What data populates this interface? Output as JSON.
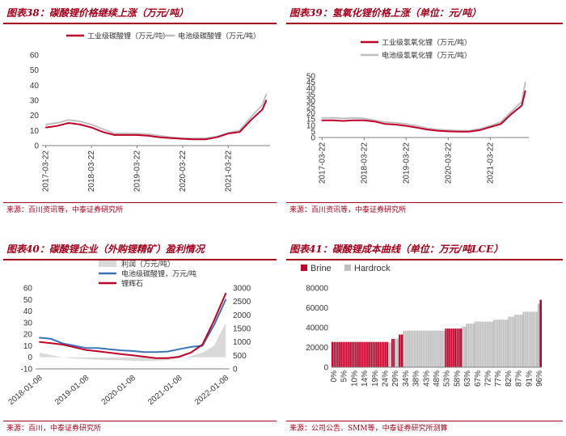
{
  "charts": [
    {
      "title": "图表38：碳酸锂价格继续上涨（万元/吨）",
      "source": "来源：百川资讯等，中泰证券研究所",
      "chart_data": {
        "type": "line",
        "y_ticks": [
          "0",
          "10",
          "20",
          "30",
          "40",
          "50",
          "60"
        ],
        "x_ticks": [
          "2017-03-22",
          "2018-03-22",
          "2019-03-22",
          "2020-03-22",
          "2021-03-22"
        ],
        "ylim": [
          0,
          60
        ],
        "legend_position": "top",
        "series": [
          {
            "name": "工业级碳酸锂（万元/吨）",
            "color": "#c00029",
            "x": [
              "2017-03",
              "2017-06",
              "2017-09",
              "2017-12",
              "2018-03",
              "2018-06",
              "2018-09",
              "2018-12",
              "2019-03",
              "2019-06",
              "2019-09",
              "2019-12",
              "2020-03",
              "2020-06",
              "2020-09",
              "2020-12",
              "2021-03",
              "2021-06",
              "2021-09",
              "2021-12",
              "2022-01"
            ],
            "values": [
              12,
              13,
              15,
              14,
              12,
              9,
              7,
              7,
              7,
              6.5,
              5.5,
              5,
              4.5,
              4.2,
              4.2,
              5.5,
              8,
              9,
              17,
              24,
              30
            ]
          },
          {
            "name": "电池级碳酸锂（万元/吨）",
            "color": "#bfbfbf",
            "x": [
              "2017-03",
              "2017-06",
              "2017-09",
              "2017-12",
              "2018-03",
              "2018-06",
              "2018-09",
              "2018-12",
              "2019-03",
              "2019-06",
              "2019-09",
              "2019-12",
              "2020-03",
              "2020-06",
              "2020-09",
              "2020-12",
              "2021-03",
              "2021-06",
              "2021-09",
              "2021-12",
              "2022-01"
            ],
            "values": [
              14,
              15,
              17,
              16,
              14,
              11,
              8,
              8,
              8,
              7.5,
              6.5,
              5.5,
              5,
              4.8,
              4.8,
              6,
              8.5,
              10,
              19,
              27,
              34
            ]
          }
        ]
      }
    },
    {
      "title": "图表39：氢氧化锂价格上涨（单位：元/吨）",
      "source": "来源：百川资讯等，中泰证券研究所",
      "chart_data": {
        "type": "line",
        "y_ticks": [
          "0",
          "5",
          "10",
          "15",
          "20",
          "25",
          "30",
          "35",
          "40",
          "45",
          "50"
        ],
        "x_ticks": [
          "2017-03-22",
          "2018-03-22",
          "2019-03-22",
          "2020-03-22",
          "2021-03-22"
        ],
        "ylim": [
          0,
          50
        ],
        "legend_position": "top",
        "series": [
          {
            "name": "工业级氢氧化锂（万元/吨）",
            "color": "#c00029",
            "x": [
              "2017-03",
              "2017-06",
              "2017-09",
              "2017-12",
              "2018-03",
              "2018-06",
              "2018-09",
              "2018-12",
              "2019-03",
              "2019-06",
              "2019-09",
              "2019-12",
              "2020-03",
              "2020-06",
              "2020-09",
              "2020-12",
              "2021-03",
              "2021-06",
              "2021-09",
              "2021-12",
              "2022-01"
            ],
            "values": [
              14,
              14,
              13.5,
              14,
              14,
              13,
              11,
              10.5,
              9.5,
              8,
              6.5,
              5.5,
              5,
              4.8,
              4.8,
              6,
              8.5,
              11,
              19,
              26,
              38
            ]
          },
          {
            "name": "电池级氢氧化锂（万元/吨）",
            "color": "#bfbfbf",
            "x": [
              "2017-03",
              "2017-06",
              "2017-09",
              "2017-12",
              "2018-03",
              "2018-06",
              "2018-09",
              "2018-12",
              "2019-03",
              "2019-06",
              "2019-09",
              "2019-12",
              "2020-03",
              "2020-06",
              "2020-09",
              "2020-12",
              "2021-03",
              "2021-06",
              "2021-09",
              "2021-12",
              "2022-01"
            ],
            "values": [
              16,
              16,
              15.5,
              16,
              15.5,
              14,
              12.5,
              12,
              11,
              9.5,
              7.5,
              6.5,
              6,
              5.5,
              5.5,
              7,
              9.5,
              12.5,
              21,
              29,
              45
            ]
          }
        ]
      }
    },
    {
      "title": "图表40：碳酸锂企业（外购锂精矿）盈利情况",
      "source": "来源：百川，中泰证券研究所",
      "chart_data": {
        "type": "line",
        "y_ticks_left": [
          "-10",
          "0",
          "10",
          "20",
          "30",
          "40",
          "50",
          "60"
        ],
        "y_ticks_right": [
          "0",
          "500",
          "1000",
          "1500",
          "2000",
          "2500",
          "3000"
        ],
        "x_ticks": [
          "2018-01-08",
          "2019-01-08",
          "2020-01-08",
          "2021-01-08",
          "2022-01-08"
        ],
        "ylim": [
          -10,
          60
        ],
        "ylim_right": [
          0,
          3000
        ],
        "legend_position": "top",
        "series": [
          {
            "name": "利润（万元/吨）",
            "type": "area",
            "axis": "left",
            "color": "#d9d9d9",
            "x": [
              "2018-01",
              "2018-04",
              "2018-07",
              "2018-10",
              "2019-01",
              "2019-04",
              "2019-07",
              "2019-10",
              "2020-01",
              "2020-04",
              "2020-07",
              "2020-10",
              "2021-01",
              "2021-04",
              "2021-07",
              "2021-10",
              "2022-01"
            ],
            "values": [
              4,
              2,
              0,
              -1,
              -1.5,
              -2,
              -2.5,
              -2.5,
              -3,
              -3,
              -3,
              -2.5,
              -1,
              1,
              4,
              10,
              30
            ]
          },
          {
            "name": "电池级碳酸锂，万元/吨",
            "axis": "left",
            "color": "#3b73b9",
            "x": [
              "2018-01",
              "2018-04",
              "2018-07",
              "2018-10",
              "2019-01",
              "2019-04",
              "2019-07",
              "2019-10",
              "2020-01",
              "2020-04",
              "2020-07",
              "2020-10",
              "2021-01",
              "2021-04",
              "2021-07",
              "2021-10",
              "2022-01"
            ],
            "values": [
              17,
              16,
              12,
              10,
              8,
              8,
              7,
              6,
              5.5,
              4.5,
              4.5,
              5,
              7,
              9,
              10,
              28,
              50
            ]
          },
          {
            "name": "锂辉石",
            "axis": "right",
            "color": "#c00029",
            "x": [
              "2018-01",
              "2018-04",
              "2018-07",
              "2018-10",
              "2019-01",
              "2019-04",
              "2019-07",
              "2019-10",
              "2020-01",
              "2020-04",
              "2020-07",
              "2020-10",
              "2021-01",
              "2021-04",
              "2021-07",
              "2021-10",
              "2022-01"
            ],
            "values": [
              1000,
              950,
              900,
              800,
              700,
              650,
              600,
              550,
              500,
              450,
              400,
              400,
              450,
              600,
              900,
              1800,
              2800
            ]
          }
        ]
      }
    },
    {
      "title": "图表41：碳酸锂成本曲线（单位：万元/吨LCE）",
      "source": "来源：公司公告、SMM等，中泰证券研究所测算",
      "chart_data": {
        "type": "bar",
        "y_ticks": [
          "0",
          "20000",
          "40000",
          "60000",
          "80000"
        ],
        "x_ticks": [
          "0%",
          "5%",
          "10%",
          "14%",
          "19%",
          "24%",
          "29%",
          "34%",
          "38%",
          "43%",
          "48%",
          "53%",
          "58%",
          "63%",
          "67%",
          "72%",
          "77%",
          "82%",
          "87%",
          "91%",
          "96%"
        ],
        "ylim": [
          0,
          80000
        ],
        "legend_position": "top-left",
        "series": [
          {
            "name": "Brine",
            "color": "#c00029"
          },
          {
            "name": "Hardrock",
            "color": "#bfbfbf"
          }
        ],
        "bars": [
          {
            "x_pct": 0,
            "width_pct": 27,
            "value": 25500,
            "type": "Brine"
          },
          {
            "x_pct": 27,
            "width_pct": 1.5,
            "value": 25000,
            "type": "Hardrock"
          },
          {
            "x_pct": 28.5,
            "width_pct": 1.5,
            "value": 28500,
            "type": "Brine"
          },
          {
            "x_pct": 30,
            "width_pct": 2,
            "value": 29000,
            "type": "Hardrock"
          },
          {
            "x_pct": 32,
            "width_pct": 2,
            "value": 33000,
            "type": "Brine"
          },
          {
            "x_pct": 34,
            "width_pct": 20,
            "value": 37000,
            "type": "Hardrock"
          },
          {
            "x_pct": 54,
            "width_pct": 8,
            "value": 39000,
            "type": "Brine"
          },
          {
            "x_pct": 62,
            "width_pct": 2,
            "value": 41000,
            "type": "Hardrock"
          },
          {
            "x_pct": 64,
            "width_pct": 4,
            "value": 44000,
            "type": "Hardrock"
          },
          {
            "x_pct": 68,
            "width_pct": 9,
            "value": 46000,
            "type": "Hardrock"
          },
          {
            "x_pct": 77,
            "width_pct": 7,
            "value": 48000,
            "type": "Hardrock"
          },
          {
            "x_pct": 84,
            "width_pct": 3,
            "value": 51000,
            "type": "Hardrock"
          },
          {
            "x_pct": 87,
            "width_pct": 4,
            "value": 53000,
            "type": "Hardrock"
          },
          {
            "x_pct": 91,
            "width_pct": 7,
            "value": 56000,
            "type": "Hardrock"
          },
          {
            "x_pct": 98,
            "width_pct": 1,
            "value": 64000,
            "type": "Hardrock"
          },
          {
            "x_pct": 99,
            "width_pct": 1,
            "value": 68000,
            "type": "Brine"
          }
        ]
      }
    }
  ]
}
